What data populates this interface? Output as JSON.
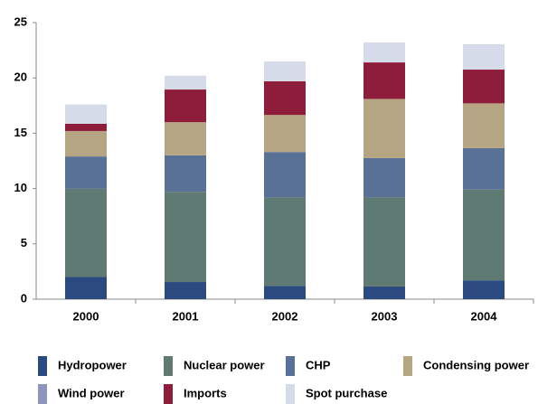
{
  "chart_data": {
    "type": "stacked_bar",
    "categories": [
      "2000",
      "2001",
      "2002",
      "2003",
      "2004"
    ],
    "series": [
      {
        "name": "Hydropower",
        "color": "#2a4a80",
        "values": [
          2.0,
          1.55,
          1.2,
          1.15,
          1.7
        ]
      },
      {
        "name": "Nuclear power",
        "color": "#5f7a72",
        "values": [
          8.0,
          8.15,
          8.0,
          8.05,
          8.2
        ]
      },
      {
        "name": "CHP",
        "color": "#5a7196",
        "values": [
          2.9,
          3.3,
          4.1,
          3.55,
          3.75
        ]
      },
      {
        "name": "Condensing power",
        "color": "#b5a583",
        "values": [
          2.3,
          3.0,
          3.35,
          5.35,
          4.05
        ]
      },
      {
        "name": "Wind power",
        "color": "#8e95bd",
        "values": [
          0,
          0,
          0,
          0,
          0
        ]
      },
      {
        "name": "Imports",
        "color": "#8e1d3b",
        "values": [
          0.65,
          2.95,
          3.05,
          3.3,
          3.05
        ]
      },
      {
        "name": "Spot purchase",
        "color": "#d5dbe8",
        "values": [
          1.75,
          1.25,
          1.8,
          1.8,
          2.3
        ]
      }
    ],
    "ylim": [
      0,
      25
    ],
    "yticks": [
      0,
      5,
      10,
      15,
      20,
      25
    ]
  }
}
